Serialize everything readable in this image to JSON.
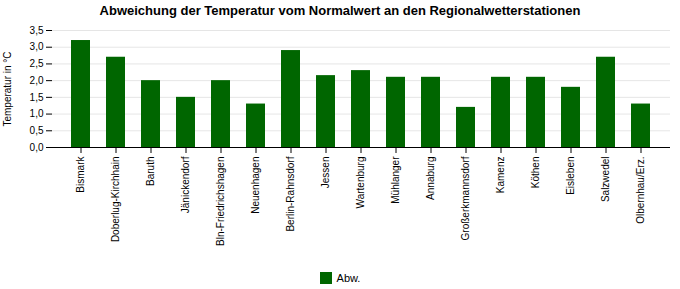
{
  "chart_data": {
    "type": "bar",
    "title": "Abweichung der Temperatur vom Normalwert an den Regionalwetterstationen",
    "ylabel": "Temperatur in °C",
    "categories": [
      "Bismark",
      "Doberlug-Kirchhain",
      "Baruth",
      "Jänickendorf",
      "Bln-Friedrichshagen",
      "Neuenhagen",
      "Berlin-Rahnsdorf",
      "Jessen",
      "Wartenburg",
      "Mühlanger",
      "Annaburg",
      "Großerkmannsdorf",
      "Kamenz",
      "Köthen",
      "Eisleben",
      "Salzwedel",
      "Olbernhau/Erz."
    ],
    "series": [
      {
        "name": "Abw.",
        "color": "#006600",
        "values": [
          3.2,
          2.7,
          2.0,
          1.5,
          2.0,
          1.3,
          2.9,
          2.15,
          2.3,
          2.1,
          2.1,
          1.2,
          2.1,
          2.1,
          1.8,
          2.7,
          1.3
        ]
      }
    ],
    "ylim": [
      0.0,
      3.5
    ],
    "yticks": [
      {
        "value": 0.0,
        "label": "0,0"
      },
      {
        "value": 0.5,
        "label": "0,5"
      },
      {
        "value": 1.0,
        "label": "1,0"
      },
      {
        "value": 1.5,
        "label": "1,5"
      },
      {
        "value": 2.0,
        "label": "2,0"
      },
      {
        "value": 2.5,
        "label": "2,5"
      },
      {
        "value": 3.0,
        "label": "3,0"
      },
      {
        "value": 3.5,
        "label": "3,5"
      }
    ],
    "grid": true,
    "legend": "bottom"
  }
}
